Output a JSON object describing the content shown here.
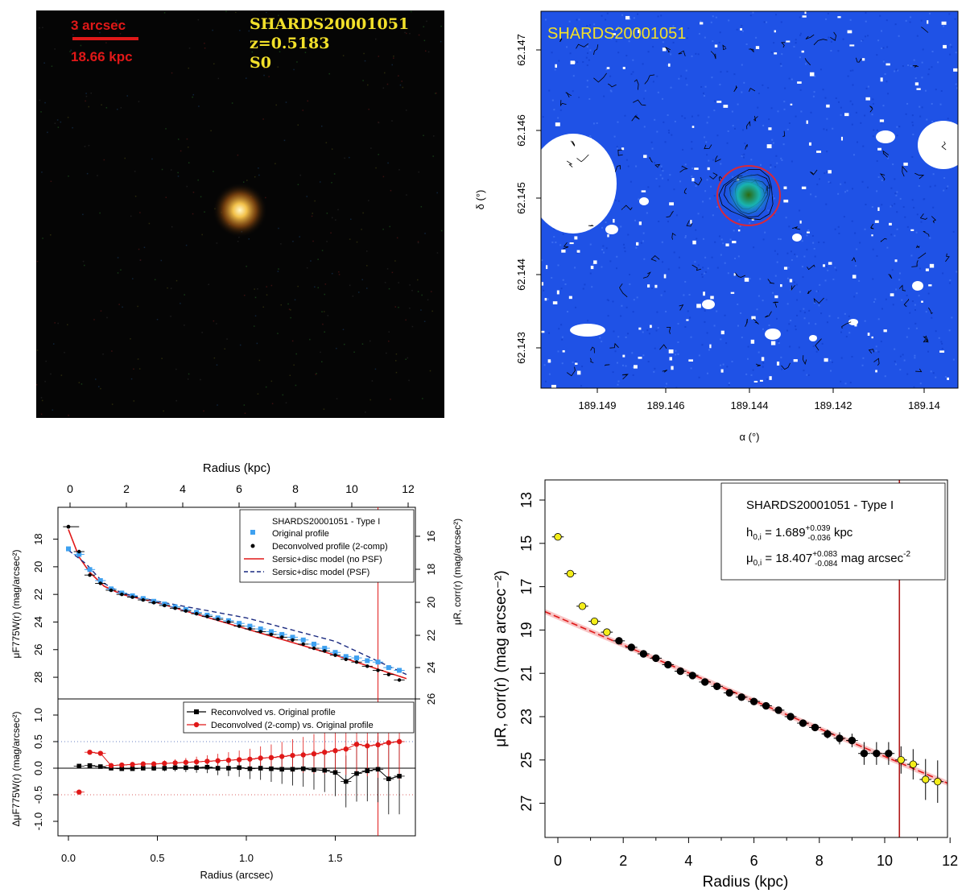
{
  "chart_data": [
    {
      "type": "other",
      "panel": "colour-image",
      "scale_bar": {
        "angular": "3 arcsec",
        "physical": "18.66 kpc"
      },
      "object": "SHARDS20001051",
      "redshift": "z=0.5183",
      "morphology": "S0"
    },
    {
      "type": "contour",
      "panel": "sky-map",
      "object": "SHARDS20001051",
      "xlabel": "α (°)",
      "ylabel": "δ (°)",
      "x_ticks": [
        "189.149",
        "189.146",
        "189.144",
        "189.142",
        "189.14"
      ],
      "y_ticks": [
        "62.147",
        "62.146",
        "62.145",
        "62.144",
        "62.143"
      ]
    },
    {
      "type": "line",
      "panel": "surface-brightness-profile",
      "top_xlabel": "Radius (kpc)",
      "top_x_ticks": [
        "0",
        "2",
        "4",
        "6",
        "8",
        "10",
        "12"
      ],
      "bottom_xlabel": "Radius (arcsec)",
      "bottom_x_ticks": [
        "0.0",
        "0.5",
        "1.0",
        "1.5"
      ],
      "ylabel_left": "μF775W(r) (mag/arcsec²)",
      "ylabel_right": "μR, corr(r) (mag/arcsec²)",
      "y_ticks_left": [
        "18",
        "20",
        "22",
        "24",
        "26",
        "28"
      ],
      "y_ticks_right": [
        "16",
        "18",
        "20",
        "22",
        "24",
        "26"
      ],
      "ylim": [
        28.5,
        16.8
      ],
      "xlim": [
        -0.05,
        1.9
      ],
      "limit_radius_arcsec": 1.74,
      "legend": {
        "title": "SHARDS20001051   - Type I",
        "entries": [
          "Original profile",
          "Deconvolved profile (2-comp)",
          "Sersic+disc model (no PSF)",
          "Sersic+disc model (PSF)"
        ]
      },
      "x": [
        0.06,
        0.12,
        0.18,
        0.24,
        0.3,
        0.36,
        0.42,
        0.48,
        0.54,
        0.6,
        0.66,
        0.72,
        0.78,
        0.84,
        0.9,
        0.96,
        1.02,
        1.08,
        1.14,
        1.2,
        1.26,
        1.32,
        1.38,
        1.44,
        1.5,
        1.56,
        1.62,
        1.68,
        1.74,
        1.8,
        1.86
      ],
      "series": [
        {
          "name": "Original profile",
          "values": [
            19.1,
            20.2,
            21.0,
            21.6,
            21.9,
            22.1,
            22.3,
            22.5,
            22.7,
            22.9,
            23.1,
            23.3,
            23.5,
            23.7,
            23.9,
            24.1,
            24.3,
            24.5,
            24.7,
            24.9,
            25.1,
            25.3,
            25.6,
            25.9,
            26.2,
            26.5,
            26.6,
            26.8,
            26.9,
            27.3,
            27.5
          ]
        },
        {
          "name": "Deconvolved profile (2-comp)",
          "values": [
            18.9,
            20.6,
            21.2,
            21.7,
            22.0,
            22.2,
            22.4,
            22.6,
            22.8,
            23.0,
            23.2,
            23.4,
            23.6,
            23.8,
            24.0,
            24.3,
            24.5,
            24.7,
            24.9,
            25.1,
            25.3,
            25.6,
            25.9,
            26.1,
            26.4,
            26.7,
            26.9,
            27.2,
            27.5,
            27.8,
            28.2
          ]
        }
      ],
      "residual_panel": {
        "ylabel": "ΔμF775W(r) (mag/arcsec²)",
        "y_ticks": [
          "1.0",
          "0.5",
          "0.0",
          "-0.5",
          "-1.0"
        ],
        "ylim": [
          -1.15,
          1.1
        ],
        "legend": [
          "Reconvolved vs. Original profile",
          "Deconvolved (2-comp) vs. Original profile"
        ],
        "x": [
          0.06,
          0.12,
          0.18,
          0.24,
          0.3,
          0.36,
          0.42,
          0.48,
          0.54,
          0.6,
          0.66,
          0.72,
          0.78,
          0.84,
          0.9,
          0.96,
          1.02,
          1.08,
          1.14,
          1.2,
          1.26,
          1.32,
          1.38,
          1.44,
          1.5,
          1.56,
          1.62,
          1.68,
          1.74,
          1.8,
          1.86
        ],
        "reconvolved": [
          0.04,
          0.05,
          0.03,
          0.0,
          -0.01,
          -0.01,
          0.0,
          0.0,
          0.0,
          0.01,
          0.01,
          0.01,
          0.02,
          0.0,
          0.0,
          0.01,
          -0.01,
          0.0,
          -0.01,
          -0.02,
          -0.02,
          -0.01,
          -0.03,
          -0.04,
          -0.08,
          -0.25,
          -0.1,
          -0.05,
          -0.02,
          -0.2,
          -0.15
        ],
        "deconvolved": [
          -0.45,
          0.3,
          0.28,
          0.05,
          0.06,
          0.07,
          0.08,
          0.08,
          0.09,
          0.1,
          0.11,
          0.12,
          0.13,
          0.14,
          0.15,
          0.16,
          0.17,
          0.19,
          0.2,
          0.22,
          0.24,
          0.25,
          0.27,
          0.3,
          0.33,
          0.36,
          0.45,
          0.42,
          0.44,
          0.48,
          0.5
        ]
      }
    },
    {
      "type": "scatter",
      "panel": "disc-profile",
      "xlabel": "Radius (kpc)",
      "ylabel": "μR, corr(r) (mag arcsec⁻²)",
      "x_ticks": [
        "0",
        "2",
        "4",
        "6",
        "8",
        "10",
        "12"
      ],
      "y_ticks": [
        "13",
        "15",
        "17",
        "19",
        "21",
        "23",
        "25",
        "27"
      ],
      "xlim": [
        -0.4,
        12.0
      ],
      "ylim": [
        28.8,
        12.1
      ],
      "legend": {
        "title": "SHARDS20001051   - Type I",
        "h_label": "h",
        "h_sub": "0,i",
        "h_value": " = 1.689",
        "h_err_up": "+0.039",
        "h_err_down": "-0.036",
        "h_unit": " kpc",
        "mu_label": "μ",
        "mu_sub": "0,i",
        "mu_value": " = 18.407",
        "mu_err_up": "+0.083",
        "mu_err_down": "-0.084",
        "mu_unit": " mag arcsec",
        "mu_unit_exp": "-2"
      },
      "limit_radius_kpc": 10.45,
      "fit_line": {
        "y_at_x0": 18.407,
        "scale_length_kpc": 1.689
      },
      "series": [
        {
          "role": "excluded",
          "x": [
            0.0,
            0.38,
            0.75,
            1.12,
            1.5
          ],
          "values": [
            14.7,
            16.4,
            17.9,
            18.6,
            19.1
          ]
        },
        {
          "role": "fitted",
          "x": [
            1.87,
            2.25,
            2.62,
            3.0,
            3.37,
            3.75,
            4.12,
            4.5,
            4.87,
            5.25,
            5.62,
            6.0,
            6.37,
            6.75,
            7.12,
            7.5,
            7.87,
            8.25,
            8.62,
            9.0,
            9.37,
            9.75,
            10.12
          ],
          "values": [
            19.5,
            19.8,
            20.1,
            20.3,
            20.6,
            20.9,
            21.1,
            21.4,
            21.6,
            21.9,
            22.1,
            22.3,
            22.5,
            22.7,
            23.0,
            23.3,
            23.5,
            23.8,
            24.0,
            24.1,
            24.7,
            24.7,
            24.7
          ]
        },
        {
          "role": "excluded-outer",
          "x": [
            10.5,
            10.87,
            11.25,
            11.62
          ],
          "values": [
            25.0,
            25.2,
            25.9,
            26.0
          ]
        }
      ]
    }
  ]
}
